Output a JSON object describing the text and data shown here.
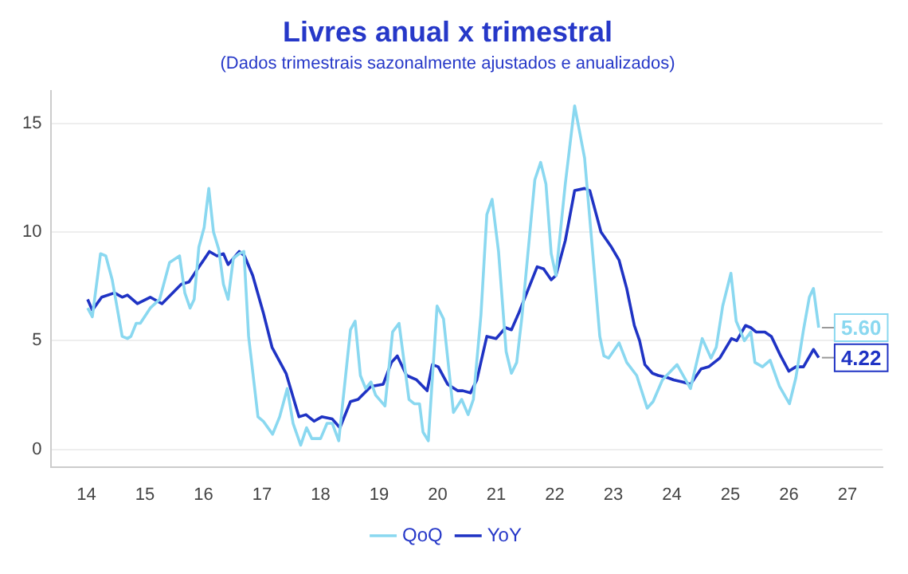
{
  "chart_data": {
    "type": "line",
    "title": "Livres anual x trimestral",
    "subtitle": "(Dados trimestrais sazonalmente ajustados e anualizados)",
    "xlim": [
      13.4,
      27.6
    ],
    "xticks": [
      14,
      15,
      16,
      17,
      18,
      19,
      20,
      21,
      22,
      23,
      24,
      25,
      26,
      27
    ],
    "ylim": [
      -0.8,
      16.5
    ],
    "yticks": [
      0,
      5,
      10,
      15
    ],
    "grid": "y",
    "legend": "bottom",
    "marker": "none",
    "line_style": "solid",
    "series": [
      {
        "name": "QoQ",
        "color": "#8ad8f0",
        "value_labels": [
          null,
          null,
          null,
          null,
          null,
          null,
          null,
          null,
          null,
          null,
          null,
          null,
          null,
          null,
          null,
          null,
          null,
          null,
          null,
          null,
          null,
          null,
          null,
          null,
          null,
          null,
          null,
          null,
          null,
          null,
          null,
          null,
          null,
          null,
          null,
          null,
          null,
          null,
          null,
          null,
          null,
          null,
          null,
          null,
          null,
          null,
          null,
          null,
          null,
          null,
          null,
          null,
          null,
          null,
          null,
          null,
          null,
          null,
          null,
          null,
          null,
          null,
          null,
          null,
          null,
          null,
          null,
          null,
          null,
          null,
          null,
          null,
          null,
          null,
          null,
          null,
          null,
          null,
          null,
          null,
          null,
          null,
          null,
          null,
          null,
          null,
          null,
          null,
          null,
          null,
          null,
          null,
          null,
          null,
          null,
          null,
          null,
          null,
          null,
          null,
          null,
          null,
          null,
          null,
          null,
          null,
          "5.60"
        ],
        "x": [
          14.02,
          14.1,
          14.24,
          14.33,
          14.44,
          14.61,
          14.7,
          14.76,
          14.85,
          14.92,
          15.09,
          15.25,
          15.42,
          15.59,
          15.68,
          15.77,
          15.84,
          15.92,
          16.01,
          16.09,
          16.17,
          16.26,
          16.34,
          16.42,
          16.51,
          16.61,
          16.69,
          16.77,
          16.93,
          17.02,
          17.18,
          17.3,
          17.43,
          17.53,
          17.66,
          17.76,
          17.85,
          18.0,
          18.11,
          18.2,
          18.31,
          18.51,
          18.59,
          18.68,
          18.77,
          18.86,
          18.94,
          19.1,
          19.23,
          19.34,
          19.51,
          19.6,
          19.69,
          19.75,
          19.84,
          19.99,
          20.1,
          20.27,
          20.41,
          20.52,
          20.61,
          20.74,
          20.84,
          20.93,
          21.04,
          21.17,
          21.26,
          21.35,
          21.44,
          21.66,
          21.76,
          21.85,
          21.94,
          22.02,
          22.18,
          22.34,
          22.51,
          22.66,
          22.77,
          22.84,
          22.92,
          23.1,
          23.23,
          23.4,
          23.58,
          23.68,
          23.84,
          24.09,
          24.32,
          24.52,
          24.67,
          24.76,
          24.87,
          25.01,
          25.1,
          25.24,
          25.35,
          25.42,
          25.55,
          25.68,
          25.84,
          26.01,
          26.12,
          26.25,
          26.35,
          26.42,
          26.51
        ],
        "values": [
          6.5,
          6.1,
          9.0,
          8.9,
          7.8,
          5.2,
          5.1,
          5.2,
          5.8,
          5.8,
          6.5,
          6.9,
          8.6,
          8.9,
          7.2,
          6.5,
          6.9,
          9.3,
          10.2,
          12.0,
          10.0,
          9.2,
          7.6,
          6.9,
          8.8,
          9.0,
          9.1,
          5.2,
          1.5,
          1.3,
          0.7,
          1.5,
          2.8,
          1.2,
          0.2,
          1.0,
          0.5,
          0.5,
          1.2,
          1.2,
          0.4,
          5.5,
          5.9,
          3.4,
          2.8,
          3.1,
          2.5,
          2.0,
          5.4,
          5.8,
          2.3,
          2.1,
          2.1,
          0.8,
          0.4,
          6.6,
          6.0,
          1.7,
          2.3,
          1.6,
          2.3,
          6.2,
          10.8,
          11.5,
          9.1,
          4.5,
          3.5,
          4.0,
          6.1,
          12.4,
          13.2,
          12.2,
          9.0,
          8.0,
          12.2,
          15.8,
          13.4,
          8.7,
          5.2,
          4.3,
          4.2,
          4.9,
          4.0,
          3.4,
          1.9,
          2.2,
          3.2,
          3.9,
          2.8,
          5.1,
          4.2,
          4.7,
          6.6,
          8.1,
          5.9,
          5.0,
          5.4,
          4.0,
          3.8,
          4.1,
          2.9,
          2.1,
          3.3,
          5.5,
          7.0,
          7.4,
          5.6
        ]
      },
      {
        "name": "YoY",
        "color": "#1f33c4",
        "value_labels": [
          null,
          null,
          null,
          null,
          null,
          null,
          null,
          null,
          null,
          null,
          null,
          null,
          null,
          null,
          null,
          null,
          null,
          null,
          null,
          null,
          null,
          null,
          null,
          null,
          null,
          null,
          null,
          null,
          null,
          null,
          null,
          null,
          null,
          null,
          null,
          null,
          null,
          null,
          null,
          null,
          null,
          null,
          null,
          null,
          null,
          null,
          null,
          null,
          null,
          null,
          null,
          null,
          null,
          null,
          null,
          null,
          null,
          null,
          null,
          null,
          null,
          null,
          null,
          null,
          null,
          null,
          null,
          null,
          null,
          null,
          null,
          null,
          null,
          null,
          null,
          null,
          null,
          null,
          null,
          null,
          null,
          null,
          null,
          null,
          null,
          null,
          "4.22"
        ],
        "x": [
          14.02,
          14.1,
          14.26,
          14.48,
          14.61,
          14.7,
          14.87,
          15.09,
          15.29,
          15.62,
          15.75,
          15.95,
          16.1,
          16.23,
          16.34,
          16.42,
          16.61,
          16.7,
          16.84,
          17.02,
          17.17,
          17.41,
          17.63,
          17.75,
          17.89,
          18.02,
          18.2,
          18.33,
          18.51,
          18.64,
          18.86,
          19.07,
          19.21,
          19.31,
          19.47,
          19.64,
          19.82,
          19.91,
          20.01,
          20.17,
          20.34,
          20.43,
          20.56,
          20.67,
          20.84,
          21.0,
          21.16,
          21.26,
          21.39,
          21.7,
          21.81,
          21.94,
          22.02,
          22.18,
          22.34,
          22.51,
          22.6,
          22.71,
          22.79,
          22.97,
          23.1,
          23.23,
          23.36,
          23.45,
          23.54,
          23.67,
          23.77,
          23.93,
          24.03,
          24.19,
          24.32,
          24.5,
          24.63,
          24.82,
          25.02,
          25.11,
          25.26,
          25.35,
          25.44,
          25.59,
          25.7,
          25.86,
          26.0,
          26.12,
          26.25,
          26.42,
          26.51
        ],
        "values": [
          6.9,
          6.4,
          7.0,
          7.2,
          7.0,
          7.1,
          6.7,
          7.0,
          6.7,
          7.6,
          7.7,
          8.5,
          9.1,
          8.9,
          9.0,
          8.5,
          9.1,
          8.9,
          8.0,
          6.3,
          4.7,
          3.5,
          1.5,
          1.6,
          1.3,
          1.5,
          1.4,
          1.0,
          2.2,
          2.3,
          2.9,
          3.0,
          4.0,
          4.3,
          3.4,
          3.2,
          2.7,
          3.9,
          3.8,
          3.0,
          2.7,
          2.7,
          2.6,
          3.2,
          5.2,
          5.1,
          5.6,
          5.5,
          6.3,
          8.4,
          8.3,
          7.8,
          8.0,
          9.6,
          11.9,
          12.0,
          11.9,
          10.8,
          10.0,
          9.3,
          8.7,
          7.4,
          5.7,
          5.0,
          3.9,
          3.5,
          3.4,
          3.3,
          3.2,
          3.1,
          3.0,
          3.7,
          3.8,
          4.2,
          5.1,
          5.0,
          5.7,
          5.6,
          5.4,
          5.4,
          5.2,
          4.3,
          3.6,
          3.8,
          3.8,
          4.6,
          4.22
        ]
      }
    ]
  }
}
